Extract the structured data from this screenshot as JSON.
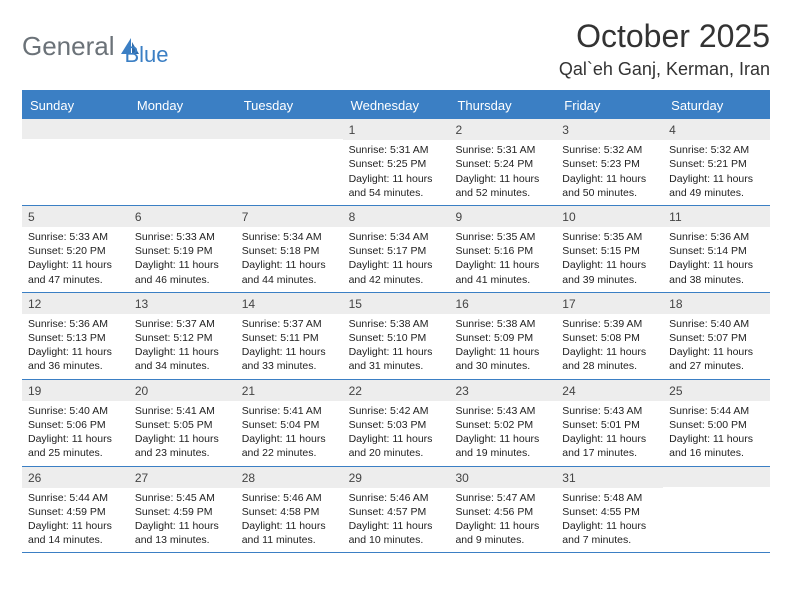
{
  "logo": {
    "text1": "General",
    "text2": "Blue"
  },
  "title": "October 2025",
  "location": "Qal`eh Ganj, Kerman, Iran",
  "colors": {
    "accent": "#3b7fc4",
    "logo_gray": "#6b7278",
    "daynum_bg": "#ededed",
    "text": "#333333"
  },
  "day_names": [
    "Sunday",
    "Monday",
    "Tuesday",
    "Wednesday",
    "Thursday",
    "Friday",
    "Saturday"
  ],
  "weeks": [
    [
      {
        "empty": true
      },
      {
        "empty": true
      },
      {
        "empty": true
      },
      {
        "n": "1",
        "sr": "Sunrise: 5:31 AM",
        "ss": "Sunset: 5:25 PM",
        "dl": "Daylight: 11 hours and 54 minutes."
      },
      {
        "n": "2",
        "sr": "Sunrise: 5:31 AM",
        "ss": "Sunset: 5:24 PM",
        "dl": "Daylight: 11 hours and 52 minutes."
      },
      {
        "n": "3",
        "sr": "Sunrise: 5:32 AM",
        "ss": "Sunset: 5:23 PM",
        "dl": "Daylight: 11 hours and 50 minutes."
      },
      {
        "n": "4",
        "sr": "Sunrise: 5:32 AM",
        "ss": "Sunset: 5:21 PM",
        "dl": "Daylight: 11 hours and 49 minutes."
      }
    ],
    [
      {
        "n": "5",
        "sr": "Sunrise: 5:33 AM",
        "ss": "Sunset: 5:20 PM",
        "dl": "Daylight: 11 hours and 47 minutes."
      },
      {
        "n": "6",
        "sr": "Sunrise: 5:33 AM",
        "ss": "Sunset: 5:19 PM",
        "dl": "Daylight: 11 hours and 46 minutes."
      },
      {
        "n": "7",
        "sr": "Sunrise: 5:34 AM",
        "ss": "Sunset: 5:18 PM",
        "dl": "Daylight: 11 hours and 44 minutes."
      },
      {
        "n": "8",
        "sr": "Sunrise: 5:34 AM",
        "ss": "Sunset: 5:17 PM",
        "dl": "Daylight: 11 hours and 42 minutes."
      },
      {
        "n": "9",
        "sr": "Sunrise: 5:35 AM",
        "ss": "Sunset: 5:16 PM",
        "dl": "Daylight: 11 hours and 41 minutes."
      },
      {
        "n": "10",
        "sr": "Sunrise: 5:35 AM",
        "ss": "Sunset: 5:15 PM",
        "dl": "Daylight: 11 hours and 39 minutes."
      },
      {
        "n": "11",
        "sr": "Sunrise: 5:36 AM",
        "ss": "Sunset: 5:14 PM",
        "dl": "Daylight: 11 hours and 38 minutes."
      }
    ],
    [
      {
        "n": "12",
        "sr": "Sunrise: 5:36 AM",
        "ss": "Sunset: 5:13 PM",
        "dl": "Daylight: 11 hours and 36 minutes."
      },
      {
        "n": "13",
        "sr": "Sunrise: 5:37 AM",
        "ss": "Sunset: 5:12 PM",
        "dl": "Daylight: 11 hours and 34 minutes."
      },
      {
        "n": "14",
        "sr": "Sunrise: 5:37 AM",
        "ss": "Sunset: 5:11 PM",
        "dl": "Daylight: 11 hours and 33 minutes."
      },
      {
        "n": "15",
        "sr": "Sunrise: 5:38 AM",
        "ss": "Sunset: 5:10 PM",
        "dl": "Daylight: 11 hours and 31 minutes."
      },
      {
        "n": "16",
        "sr": "Sunrise: 5:38 AM",
        "ss": "Sunset: 5:09 PM",
        "dl": "Daylight: 11 hours and 30 minutes."
      },
      {
        "n": "17",
        "sr": "Sunrise: 5:39 AM",
        "ss": "Sunset: 5:08 PM",
        "dl": "Daylight: 11 hours and 28 minutes."
      },
      {
        "n": "18",
        "sr": "Sunrise: 5:40 AM",
        "ss": "Sunset: 5:07 PM",
        "dl": "Daylight: 11 hours and 27 minutes."
      }
    ],
    [
      {
        "n": "19",
        "sr": "Sunrise: 5:40 AM",
        "ss": "Sunset: 5:06 PM",
        "dl": "Daylight: 11 hours and 25 minutes."
      },
      {
        "n": "20",
        "sr": "Sunrise: 5:41 AM",
        "ss": "Sunset: 5:05 PM",
        "dl": "Daylight: 11 hours and 23 minutes."
      },
      {
        "n": "21",
        "sr": "Sunrise: 5:41 AM",
        "ss": "Sunset: 5:04 PM",
        "dl": "Daylight: 11 hours and 22 minutes."
      },
      {
        "n": "22",
        "sr": "Sunrise: 5:42 AM",
        "ss": "Sunset: 5:03 PM",
        "dl": "Daylight: 11 hours and 20 minutes."
      },
      {
        "n": "23",
        "sr": "Sunrise: 5:43 AM",
        "ss": "Sunset: 5:02 PM",
        "dl": "Daylight: 11 hours and 19 minutes."
      },
      {
        "n": "24",
        "sr": "Sunrise: 5:43 AM",
        "ss": "Sunset: 5:01 PM",
        "dl": "Daylight: 11 hours and 17 minutes."
      },
      {
        "n": "25",
        "sr": "Sunrise: 5:44 AM",
        "ss": "Sunset: 5:00 PM",
        "dl": "Daylight: 11 hours and 16 minutes."
      }
    ],
    [
      {
        "n": "26",
        "sr": "Sunrise: 5:44 AM",
        "ss": "Sunset: 4:59 PM",
        "dl": "Daylight: 11 hours and 14 minutes."
      },
      {
        "n": "27",
        "sr": "Sunrise: 5:45 AM",
        "ss": "Sunset: 4:59 PM",
        "dl": "Daylight: 11 hours and 13 minutes."
      },
      {
        "n": "28",
        "sr": "Sunrise: 5:46 AM",
        "ss": "Sunset: 4:58 PM",
        "dl": "Daylight: 11 hours and 11 minutes."
      },
      {
        "n": "29",
        "sr": "Sunrise: 5:46 AM",
        "ss": "Sunset: 4:57 PM",
        "dl": "Daylight: 11 hours and 10 minutes."
      },
      {
        "n": "30",
        "sr": "Sunrise: 5:47 AM",
        "ss": "Sunset: 4:56 PM",
        "dl": "Daylight: 11 hours and 9 minutes."
      },
      {
        "n": "31",
        "sr": "Sunrise: 5:48 AM",
        "ss": "Sunset: 4:55 PM",
        "dl": "Daylight: 11 hours and 7 minutes."
      },
      {
        "empty": true
      }
    ]
  ]
}
